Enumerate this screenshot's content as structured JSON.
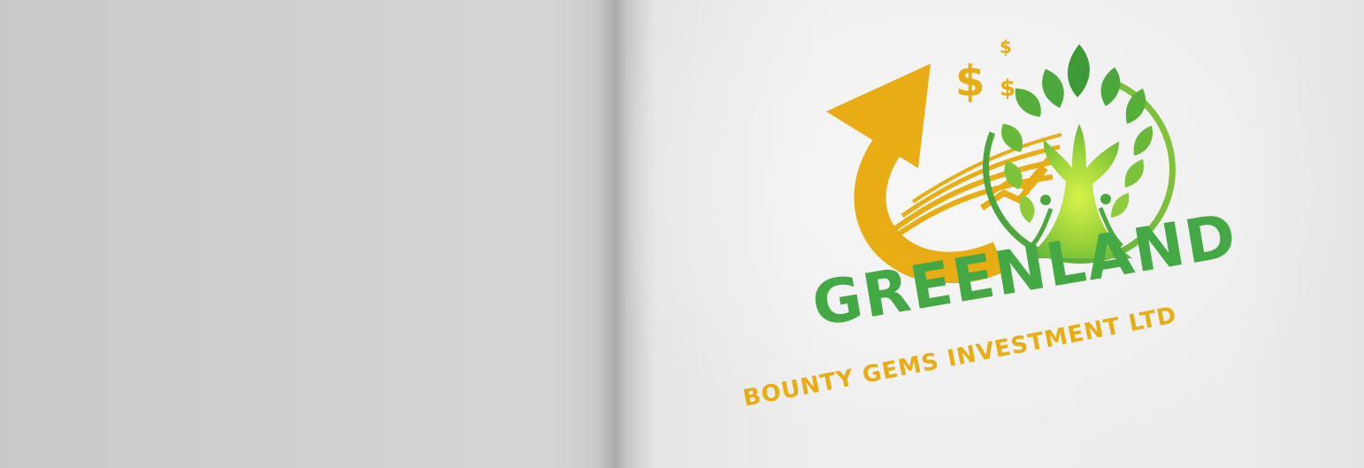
{
  "brand": {
    "name": "GREENLAND",
    "tagline": "BOUNTY GEMS INVESTMENT LTD"
  },
  "logo": {
    "icons": [
      "growth-arrow-icon",
      "dollar-sign-icon",
      "tree-icon"
    ],
    "currency_symbol": "$",
    "colors": {
      "green": "#44a845",
      "light_green": "#9bd33a",
      "gold": "#e8ad14"
    }
  }
}
